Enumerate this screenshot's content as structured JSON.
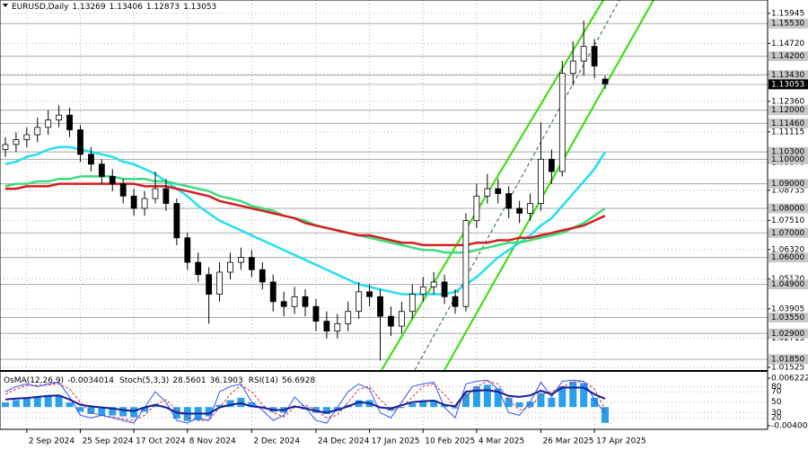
{
  "chart_data": [
    {
      "type": "candlestick",
      "title": "EURUSD,Daily",
      "categories": [
        null,
        null,
        "2 Sep 2024",
        null,
        null,
        null,
        null,
        "25 Sep 2024",
        null,
        null,
        null,
        null,
        "17 Oct 2024",
        null,
        null,
        null,
        null,
        "8 Nov 2024",
        null,
        null,
        null,
        null,
        null,
        "2 Dec 2024",
        null,
        null,
        null,
        null,
        null,
        "24 Dec 2024",
        null,
        null,
        null,
        null,
        "17 Jan 2025",
        null,
        null,
        null,
        null,
        "10 Feb 2025",
        null,
        null,
        null,
        null,
        "4 Mar 2025",
        null,
        null,
        null,
        null,
        null,
        "26 Mar 2025",
        null,
        null,
        null,
        null,
        "17 Apr 2025",
        null
      ],
      "candles": [
        [
          1.104,
          1.109,
          1.101,
          1.106
        ],
        [
          1.106,
          1.111,
          1.103,
          1.108
        ],
        [
          1.108,
          1.113,
          1.105,
          1.11
        ],
        [
          1.11,
          1.117,
          1.107,
          1.113
        ],
        [
          1.113,
          1.12,
          1.11,
          1.116
        ],
        [
          1.116,
          1.122,
          1.113,
          1.118
        ],
        [
          1.118,
          1.121,
          1.109,
          1.112
        ],
        [
          1.112,
          1.114,
          1.099,
          1.102
        ],
        [
          1.102,
          1.105,
          1.095,
          1.098
        ],
        [
          1.098,
          1.1,
          1.09,
          1.093
        ],
        [
          1.093,
          1.096,
          1.087,
          1.09
        ],
        [
          1.09,
          1.092,
          1.082,
          1.085
        ],
        [
          1.085,
          1.088,
          1.077,
          1.08
        ],
        [
          1.08,
          1.087,
          1.077,
          1.084
        ],
        [
          1.084,
          1.095,
          1.082,
          1.088
        ],
        [
          1.088,
          1.092,
          1.079,
          1.082
        ],
        [
          1.082,
          1.084,
          1.065,
          1.068
        ],
        [
          1.068,
          1.07,
          1.055,
          1.058
        ],
        [
          1.058,
          1.062,
          1.05,
          1.053
        ],
        [
          1.053,
          1.056,
          1.033,
          1.045
        ],
        [
          1.045,
          1.058,
          1.042,
          1.054
        ],
        [
          1.054,
          1.062,
          1.051,
          1.058
        ],
        [
          1.058,
          1.064,
          1.055,
          1.06
        ],
        [
          1.06,
          1.063,
          1.052,
          1.055
        ],
        [
          1.055,
          1.058,
          1.047,
          1.05
        ],
        [
          1.05,
          1.053,
          1.038,
          1.042
        ],
        [
          1.042,
          1.046,
          1.036,
          1.04
        ],
        [
          1.04,
          1.048,
          1.037,
          1.044
        ],
        [
          1.044,
          1.047,
          1.036,
          1.04
        ],
        [
          1.04,
          1.043,
          1.03,
          1.034
        ],
        [
          1.034,
          1.038,
          1.027,
          1.03
        ],
        [
          1.03,
          1.037,
          1.027,
          1.033
        ],
        [
          1.033,
          1.042,
          1.03,
          1.038
        ],
        [
          1.038,
          1.05,
          1.035,
          1.046
        ],
        [
          1.046,
          1.049,
          1.04,
          1.044
        ],
        [
          1.044,
          1.047,
          1.018,
          1.036
        ],
        [
          1.036,
          1.04,
          1.028,
          1.032
        ],
        [
          1.032,
          1.042,
          1.029,
          1.038
        ],
        [
          1.038,
          1.049,
          1.035,
          1.045
        ],
        [
          1.045,
          1.052,
          1.042,
          1.048
        ],
        [
          1.048,
          1.054,
          1.045,
          1.05
        ],
        [
          1.05,
          1.053,
          1.041,
          1.044
        ],
        [
          1.044,
          1.047,
          1.037,
          1.04
        ],
        [
          1.04,
          1.078,
          1.038,
          1.075
        ],
        [
          1.075,
          1.09,
          1.072,
          1.085
        ],
        [
          1.085,
          1.094,
          1.082,
          1.088
        ],
        [
          1.088,
          1.092,
          1.082,
          1.086
        ],
        [
          1.086,
          1.089,
          1.076,
          1.08
        ],
        [
          1.08,
          1.083,
          1.074,
          1.078
        ],
        [
          1.078,
          1.086,
          1.075,
          1.082
        ],
        [
          1.082,
          1.115,
          1.079,
          1.1
        ],
        [
          1.1,
          1.104,
          1.09,
          1.095
        ],
        [
          1.095,
          1.14,
          1.093,
          1.135
        ],
        [
          1.135,
          1.148,
          1.13,
          1.14
        ],
        [
          1.14,
          1.1565,
          1.134,
          1.146
        ],
        [
          1.146,
          1.149,
          1.133,
          1.138
        ],
        [
          1.13269,
          1.13406,
          1.12873,
          1.13053
        ]
      ],
      "series": [
        {
          "color": "#22e0f0",
          "values": [
            1.098,
            1.099,
            1.101,
            1.102,
            1.104,
            1.105,
            1.105,
            1.104,
            1.103,
            1.102,
            1.101,
            1.099,
            1.098,
            1.096,
            1.094,
            1.091,
            1.088,
            1.085,
            1.081,
            1.078,
            1.075,
            1.073,
            1.071,
            1.069,
            1.067,
            1.065,
            1.063,
            1.061,
            1.059,
            1.057,
            1.055,
            1.053,
            1.051,
            1.049,
            1.048,
            1.047,
            1.046,
            1.045,
            1.045,
            1.045,
            1.045,
            1.045,
            1.046,
            1.049,
            1.052,
            1.056,
            1.06,
            1.063,
            1.066,
            1.069,
            1.073,
            1.076,
            1.081,
            1.086,
            1.091,
            1.096,
            1.103
          ]
        },
        {
          "color": "#3cdc80",
          "values": [
            1.089,
            1.09,
            1.09,
            1.091,
            1.091,
            1.092,
            1.092,
            1.093,
            1.093,
            1.093,
            1.093,
            1.092,
            1.092,
            1.092,
            1.091,
            1.091,
            1.09,
            1.089,
            1.088,
            1.087,
            1.085,
            1.084,
            1.083,
            1.081,
            1.08,
            1.079,
            1.077,
            1.076,
            1.075,
            1.073,
            1.072,
            1.071,
            1.07,
            1.069,
            1.068,
            1.067,
            1.066,
            1.065,
            1.064,
            1.063,
            1.063,
            1.062,
            1.062,
            1.062,
            1.063,
            1.064,
            1.065,
            1.066,
            1.066,
            1.067,
            1.068,
            1.069,
            1.07,
            1.072,
            1.074,
            1.077,
            1.08
          ]
        },
        {
          "color": "#d41e1e",
          "values": [
            1.088,
            1.088,
            1.089,
            1.089,
            1.089,
            1.09,
            1.09,
            1.09,
            1.09,
            1.09,
            1.09,
            1.09,
            1.09,
            1.089,
            1.089,
            1.089,
            1.088,
            1.087,
            1.086,
            1.085,
            1.083,
            1.082,
            1.081,
            1.08,
            1.079,
            1.078,
            1.077,
            1.076,
            1.074,
            1.073,
            1.072,
            1.071,
            1.07,
            1.069,
            1.069,
            1.068,
            1.067,
            1.066,
            1.066,
            1.065,
            1.065,
            1.065,
            1.065,
            1.065,
            1.066,
            1.066,
            1.067,
            1.067,
            1.068,
            1.068,
            1.069,
            1.07,
            1.071,
            1.072,
            1.073,
            1.075,
            1.077
          ]
        }
      ],
      "ylim": [
        1.0141,
        1.1649
      ],
      "yticks": [
        1.15945,
        {
          "value": 1.1472,
          "label": "1.14720"
        },
        1.13475,
        {
          "value": 1.1236,
          "label": "1.12360"
        },
        1.11115,
        {
          "value": 1.0987,
          "label": "1.09870"
        },
        1.08735,
        {
          "value": 1.0751,
          "label": "1.07510"
        },
        {
          "value": 1.0632,
          "label": "1.06320"
        },
        {
          "value": 1.0512,
          "label": "1.05120"
        },
        1.03905,
        1.02715,
        1.01525
      ],
      "levels": [
        {
          "value": 1.1553,
          "label": "1.15530"
        },
        {
          "value": 1.142,
          "label": "1.14200"
        },
        {
          "value": 1.1343,
          "label": "1.13430"
        },
        {
          "value": 1.12,
          "label": "1.12000"
        },
        {
          "value": 1.1146,
          "label": "1.11460"
        },
        {
          "value": 1.103,
          "label": "1.10300"
        },
        {
          "value": 1.1,
          "label": "1.10000"
        },
        {
          "value": 1.09,
          "label": "1.09000"
        },
        {
          "value": 1.08,
          "label": "1.08000"
        },
        {
          "value": 1.07,
          "label": "1.07000"
        },
        {
          "value": 1.06,
          "label": "1.06000"
        },
        {
          "value": 1.049,
          "label": "1.04900"
        },
        {
          "value": 1.0355,
          "label": "1.03550"
        },
        {
          "value": 1.029,
          "label": "1.02900"
        },
        {
          "value": 1.0185,
          "label": "1.01850"
        }
      ],
      "grid": true
    },
    {
      "type": "oscillators",
      "series": [
        {
          "name": "OsMA(12,26,9)",
          "color": "#2aa0e8",
          "style": "histogram",
          "axis": "y2",
          "values": [
            0.001,
            0.0015,
            0.002,
            0.0022,
            0.0025,
            0.0025,
            0.001,
            -0.001,
            -0.0015,
            -0.0018,
            -0.0018,
            -0.002,
            -0.0022,
            -0.001,
            0.0005,
            0,
            -0.0025,
            -0.003,
            -0.0028,
            -0.002,
            0.0005,
            0.0015,
            0.002,
            0.001,
            0,
            -0.001,
            -0.0012,
            0,
            -0.0005,
            -0.0012,
            -0.0015,
            -0.0008,
            0.0005,
            0.0015,
            0.0015,
            0,
            -0.0008,
            -0.0002,
            0.0008,
            0.0012,
            0.0015,
            0.0005,
            -0.0003,
            0.003,
            0.0045,
            0.0048,
            0.004,
            0.002,
            0.001,
            0.0012,
            0.003,
            0.002,
            0.0045,
            0.0055,
            0.0052,
            0.002,
            -0.0034014
          ]
        },
        {
          "name": "Stoch(5,3,3)",
          "color": "#3050ff",
          "style": "line",
          "values": [
            70,
            80,
            85,
            80,
            85,
            88,
            60,
            25,
            20,
            25,
            20,
            15,
            10,
            40,
            70,
            50,
            15,
            10,
            20,
            15,
            70,
            80,
            85,
            50,
            35,
            15,
            25,
            60,
            40,
            15,
            10,
            40,
            70,
            85,
            75,
            30,
            20,
            50,
            80,
            85,
            88,
            40,
            20,
            85,
            90,
            92,
            75,
            30,
            25,
            50,
            88,
            60,
            90,
            92,
            90,
            55,
            28.5601
          ],
          "signal": {
            "color": "#e03030",
            "values": [
              65,
              75,
              82,
              82,
              83,
              85,
              75,
              50,
              30,
              24,
              22,
              18,
              15,
              25,
              45,
              55,
              35,
              20,
              15,
              15,
              40,
              65,
              82,
              70,
              45,
              30,
              22,
              40,
              45,
              35,
              20,
              25,
              50,
              75,
              80,
              55,
              35,
              40,
              60,
              80,
              85,
              65,
              40,
              60,
              80,
              90,
              85,
              55,
              35,
              40,
              65,
              70,
              80,
              88,
              90,
              75,
              36.1903
            ]
          }
        },
        {
          "name": "RSI(14)",
          "color": "#1a1a9a",
          "style": "thick",
          "values": [
            55,
            57,
            58,
            60,
            62,
            63,
            55,
            45,
            42,
            40,
            38,
            35,
            33,
            40,
            45,
            40,
            30,
            28,
            28,
            28,
            40,
            45,
            48,
            42,
            40,
            35,
            35,
            42,
            38,
            33,
            30,
            35,
            42,
            50,
            48,
            40,
            38,
            44,
            50,
            52,
            53,
            45,
            42,
            70,
            72,
            73,
            70,
            62,
            60,
            63,
            72,
            65,
            78,
            78,
            78,
            65,
            56.6928
          ]
        }
      ],
      "ylim": [
        -2,
        108
      ],
      "yticks": [
        20,
        30,
        50,
        70,
        80
      ],
      "y2lim": [
        -0.0048,
        0.0076
      ],
      "y2ticks": [
        0.0062223,
        {
          "value": -0.004,
          "label": "-0.004000"
        }
      ]
    }
  ]
}
